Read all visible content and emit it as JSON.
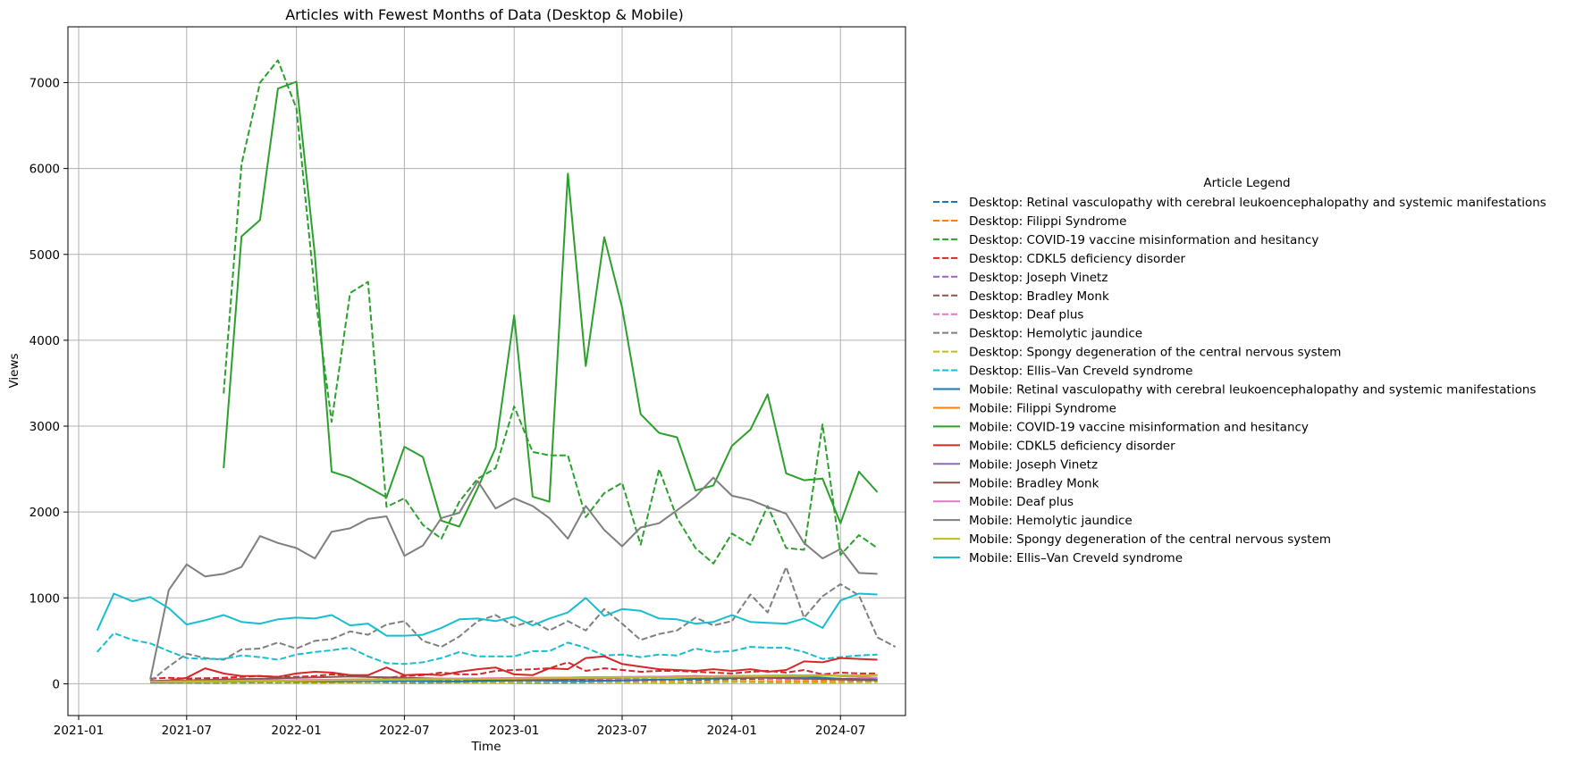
{
  "chart_data": {
    "type": "line",
    "title": "Articles with Fewest Months of Data (Desktop & Mobile)",
    "xlabel": "Time",
    "ylabel": "Views",
    "xlim": [
      "2020-12-14",
      "2024-10-18"
    ],
    "ylim": [
      -370,
      7650
    ],
    "grid": true,
    "legend_title": "Article Legend",
    "legend_placement": "outside-right",
    "x_ticks": [
      "2021-01",
      "2021-07",
      "2022-01",
      "2022-07",
      "2023-01",
      "2023-07",
      "2024-01",
      "2024-07"
    ],
    "y_ticks": [
      0,
      1000,
      2000,
      3000,
      4000,
      5000,
      6000,
      7000
    ],
    "colors": [
      "#1f77b4",
      "#ff7f0e",
      "#2ca02c",
      "#d62728",
      "#9467bd",
      "#8c564b",
      "#e377c2",
      "#7f7f7f",
      "#bcbd22",
      "#17becf"
    ],
    "series": [
      {
        "name": "Desktop: Retinal vasculopathy with cerebral leukoencephalopathy and systemic manifestations",
        "dash": true,
        "color": "#1f77b4",
        "start": "2021-05",
        "values": [
          10,
          12,
          14,
          11,
          12,
          13,
          15,
          14,
          13,
          12,
          14,
          16,
          18,
          15,
          13,
          12,
          14,
          15,
          16,
          17,
          14,
          13,
          12,
          15,
          16,
          18,
          20,
          17,
          16,
          15,
          14,
          18,
          22,
          19,
          17,
          16,
          15,
          18,
          20,
          22,
          25
        ]
      },
      {
        "name": "Desktop: Filippi Syndrome",
        "dash": true,
        "color": "#ff7f0e",
        "start": "2021-05",
        "values": [
          15,
          18,
          20,
          22,
          25,
          20,
          18,
          22,
          24,
          26,
          28,
          25,
          22,
          20,
          18,
          22,
          25,
          28,
          30,
          26,
          24,
          22,
          20,
          24,
          26,
          28,
          30,
          27,
          25,
          23,
          22,
          26,
          28,
          30,
          32,
          28,
          26,
          24,
          22,
          25,
          28
        ]
      },
      {
        "name": "Desktop: COVID-19 vaccine misinformation and hesitancy",
        "dash": true,
        "color": "#2ca02c",
        "start": "2021-09",
        "values": [
          3380,
          6050,
          7000,
          7260,
          6700,
          4550,
          3050,
          4550,
          4680,
          2060,
          2160,
          1850,
          1690,
          2120,
          2390,
          2510,
          3230,
          2700,
          2660,
          2660,
          1940,
          2220,
          2340,
          1620,
          2500,
          1930,
          1580,
          1400,
          1750,
          1620,
          2070,
          1580,
          1560,
          3020,
          1500,
          1730,
          1580
        ]
      },
      {
        "name": "Desktop: CDKL5 deficiency disorder",
        "dash": true,
        "color": "#d62728",
        "start": "2021-05",
        "values": [
          60,
          70,
          60,
          65,
          70,
          80,
          90,
          80,
          80,
          90,
          110,
          100,
          80,
          70,
          90,
          100,
          130,
          110,
          110,
          150,
          160,
          170,
          180,
          250,
          150,
          180,
          160,
          140,
          150,
          150,
          140,
          130,
          120,
          140,
          150,
          130,
          160,
          110,
          130,
          120,
          120
        ]
      },
      {
        "name": "Desktop: Joseph Vinetz",
        "dash": true,
        "color": "#9467bd",
        "start": "2021-05",
        "values": [
          20,
          22,
          25,
          24,
          28,
          30,
          26,
          24,
          28,
          30,
          32,
          35,
          30,
          28,
          30,
          34,
          38,
          40,
          36,
          34,
          32,
          36,
          40,
          42,
          38,
          36,
          34,
          40,
          44,
          48,
          60,
          70,
          80,
          90,
          70,
          60,
          55,
          50,
          45,
          40,
          38
        ]
      },
      {
        "name": "Desktop: Bradley Monk",
        "dash": true,
        "color": "#8c564b",
        "start": "2021-05",
        "values": [
          30,
          35,
          32,
          34,
          36,
          38,
          40,
          42,
          40,
          38,
          42,
          45,
          48,
          44,
          42,
          40,
          45,
          48,
          50,
          52,
          48,
          46,
          44,
          48,
          50,
          52,
          55,
          50,
          48,
          46,
          44,
          48,
          52,
          55,
          58,
          52,
          50,
          48,
          46,
          44,
          42
        ]
      },
      {
        "name": "Desktop: Deaf plus",
        "dash": true,
        "color": "#e377c2",
        "start": "2021-05",
        "values": [
          20,
          22,
          24,
          26,
          28,
          30,
          32,
          34,
          36,
          38,
          40,
          42,
          44,
          46,
          48,
          50,
          52,
          54,
          56,
          58,
          60,
          62,
          64,
          66,
          60,
          58,
          56,
          54,
          52,
          50,
          55,
          60,
          65,
          70,
          60,
          55,
          50,
          48,
          46,
          44,
          42
        ]
      },
      {
        "name": "Desktop: Hemolytic jaundice",
        "dash": true,
        "color": "#7f7f7f",
        "start": "2021-05",
        "values": [
          30,
          200,
          350,
          300,
          280,
          400,
          410,
          480,
          410,
          500,
          520,
          610,
          570,
          690,
          730,
          500,
          430,
          550,
          730,
          800,
          670,
          730,
          620,
          730,
          620,
          870,
          700,
          510,
          580,
          620,
          770,
          680,
          730,
          1040,
          830,
          1360,
          770,
          1020,
          1160,
          1030,
          540,
          430
        ]
      },
      {
        "name": "Desktop: Spongy degeneration of the central nervous system",
        "dash": true,
        "color": "#bcbd22",
        "start": "2021-05",
        "values": [
          10,
          12,
          14,
          15,
          16,
          18,
          20,
          18,
          16,
          15,
          14,
          16,
          18,
          20,
          22,
          20,
          18,
          16,
          15,
          14,
          16,
          18,
          20,
          22,
          20,
          18,
          16,
          15,
          14,
          16,
          18,
          20,
          22,
          20,
          18,
          16,
          15,
          14,
          16,
          18,
          20
        ]
      },
      {
        "name": "Desktop: Ellis–Van Creveld syndrome",
        "dash": true,
        "color": "#17becf",
        "start": "2021-02",
        "values": [
          370,
          590,
          510,
          470,
          380,
          300,
          290,
          290,
          330,
          310,
          280,
          340,
          370,
          390,
          420,
          320,
          240,
          230,
          250,
          300,
          370,
          320,
          320,
          320,
          380,
          380,
          480,
          420,
          330,
          340,
          310,
          340,
          330,
          410,
          370,
          380,
          430,
          420,
          420,
          370,
          290,
          310,
          330,
          340
        ]
      },
      {
        "name": "Mobile: Retinal vasculopathy with cerebral leukoencephalopathy and systemic manifestations",
        "dash": false,
        "color": "#1f77b4",
        "start": "2021-05",
        "values": [
          15,
          18,
          20,
          22,
          24,
          26,
          28,
          30,
          28,
          26,
          24,
          28,
          30,
          32,
          34,
          30,
          28,
          26,
          30,
          34,
          38,
          40,
          36,
          34,
          32,
          36,
          40,
          44,
          48,
          52,
          56,
          60,
          64,
          68,
          72,
          76,
          80,
          70,
          60,
          55,
          50
        ]
      },
      {
        "name": "Mobile: Filippi Syndrome",
        "dash": false,
        "color": "#ff7f0e",
        "start": "2021-05",
        "values": [
          20,
          22,
          24,
          26,
          28,
          30,
          32,
          34,
          36,
          38,
          40,
          42,
          44,
          46,
          48,
          50,
          52,
          54,
          56,
          58,
          60,
          62,
          64,
          66,
          68,
          70,
          72,
          74,
          76,
          78,
          80,
          82,
          84,
          86,
          88,
          90,
          92,
          94,
          96,
          98,
          100
        ]
      },
      {
        "name": "Mobile: COVID-19 vaccine misinformation and hesitancy",
        "dash": false,
        "color": "#2ca02c",
        "start": "2021-09",
        "values": [
          2510,
          5210,
          5400,
          6930,
          7010,
          4990,
          2470,
          2400,
          2290,
          2170,
          2760,
          2640,
          1900,
          1830,
          2280,
          2750,
          4290,
          2180,
          2120,
          5940,
          3700,
          5200,
          4380,
          3140,
          2920,
          2870,
          2250,
          2310,
          2770,
          2960,
          3370,
          2450,
          2370,
          2390,
          1870,
          2470,
          2230
        ]
      },
      {
        "name": "Mobile: CDKL5 deficiency disorder",
        "dash": false,
        "color": "#d62728",
        "start": "2021-05",
        "values": [
          30,
          40,
          70,
          180,
          120,
          90,
          90,
          80,
          120,
          140,
          130,
          100,
          100,
          190,
          100,
          110,
          100,
          140,
          170,
          190,
          110,
          100,
          180,
          170,
          300,
          320,
          230,
          200,
          170,
          160,
          150,
          170,
          150,
          170,
          140,
          160,
          260,
          250,
          300,
          290,
          280
        ]
      },
      {
        "name": "Mobile: Joseph Vinetz",
        "dash": false,
        "color": "#9467bd",
        "start": "2021-05",
        "values": [
          25,
          28,
          30,
          32,
          34,
          36,
          38,
          40,
          42,
          44,
          46,
          48,
          50,
          52,
          54,
          56,
          58,
          60,
          62,
          64,
          66,
          68,
          70,
          72,
          74,
          76,
          78,
          80,
          82,
          84,
          86,
          88,
          90,
          92,
          94,
          96,
          98,
          100,
          90,
          80,
          70
        ]
      },
      {
        "name": "Mobile: Bradley Monk",
        "dash": false,
        "color": "#8c564b",
        "start": "2021-05",
        "values": [
          30,
          35,
          40,
          45,
          50,
          55,
          60,
          65,
          70,
          75,
          80,
          85,
          80,
          75,
          70,
          65,
          60,
          55,
          50,
          45,
          40,
          45,
          50,
          55,
          60,
          65,
          70,
          75,
          80,
          85,
          90,
          85,
          80,
          75,
          70,
          65,
          60,
          55,
          50,
          45,
          40
        ]
      },
      {
        "name": "Mobile: Deaf plus",
        "dash": false,
        "color": "#e377c2",
        "start": "2021-05",
        "values": [
          25,
          28,
          30,
          32,
          34,
          36,
          38,
          40,
          42,
          44,
          46,
          48,
          50,
          52,
          54,
          56,
          58,
          60,
          62,
          64,
          66,
          68,
          70,
          72,
          74,
          76,
          78,
          80,
          82,
          84,
          86,
          88,
          90,
          92,
          94,
          96,
          98,
          100,
          90,
          80,
          70
        ]
      },
      {
        "name": "Mobile: Hemolytic jaundice",
        "dash": false,
        "color": "#7f7f7f",
        "start": "2021-05",
        "values": [
          50,
          1090,
          1390,
          1250,
          1280,
          1360,
          1720,
          1640,
          1580,
          1460,
          1770,
          1810,
          1920,
          1950,
          1490,
          1610,
          1930,
          1990,
          2360,
          2040,
          2160,
          2070,
          1930,
          1690,
          2070,
          1790,
          1600,
          1820,
          1870,
          2020,
          2180,
          2400,
          2190,
          2140,
          2060,
          1980,
          1640,
          1460,
          1570,
          1290,
          1280
        ]
      },
      {
        "name": "Mobile: Spongy degeneration of the central nervous system",
        "dash": false,
        "color": "#bcbd22",
        "start": "2021-05",
        "values": [
          20,
          22,
          24,
          26,
          28,
          30,
          32,
          34,
          36,
          38,
          40,
          42,
          44,
          46,
          48,
          50,
          52,
          54,
          56,
          58,
          60,
          62,
          64,
          66,
          68,
          70,
          72,
          74,
          76,
          78,
          80,
          82,
          84,
          86,
          88,
          90,
          92,
          94,
          96,
          98,
          100
        ]
      },
      {
        "name": "Mobile: Ellis–Van Creveld syndrome",
        "dash": false,
        "color": "#17becf",
        "start": "2021-02",
        "values": [
          620,
          1050,
          960,
          1010,
          880,
          690,
          740,
          800,
          720,
          700,
          750,
          770,
          760,
          800,
          680,
          700,
          560,
          560,
          570,
          650,
          750,
          760,
          730,
          780,
          680,
          760,
          830,
          1000,
          790,
          870,
          850,
          760,
          750,
          700,
          720,
          800,
          720,
          710,
          700,
          760,
          650,
          970,
          1050,
          1040
        ]
      }
    ]
  }
}
